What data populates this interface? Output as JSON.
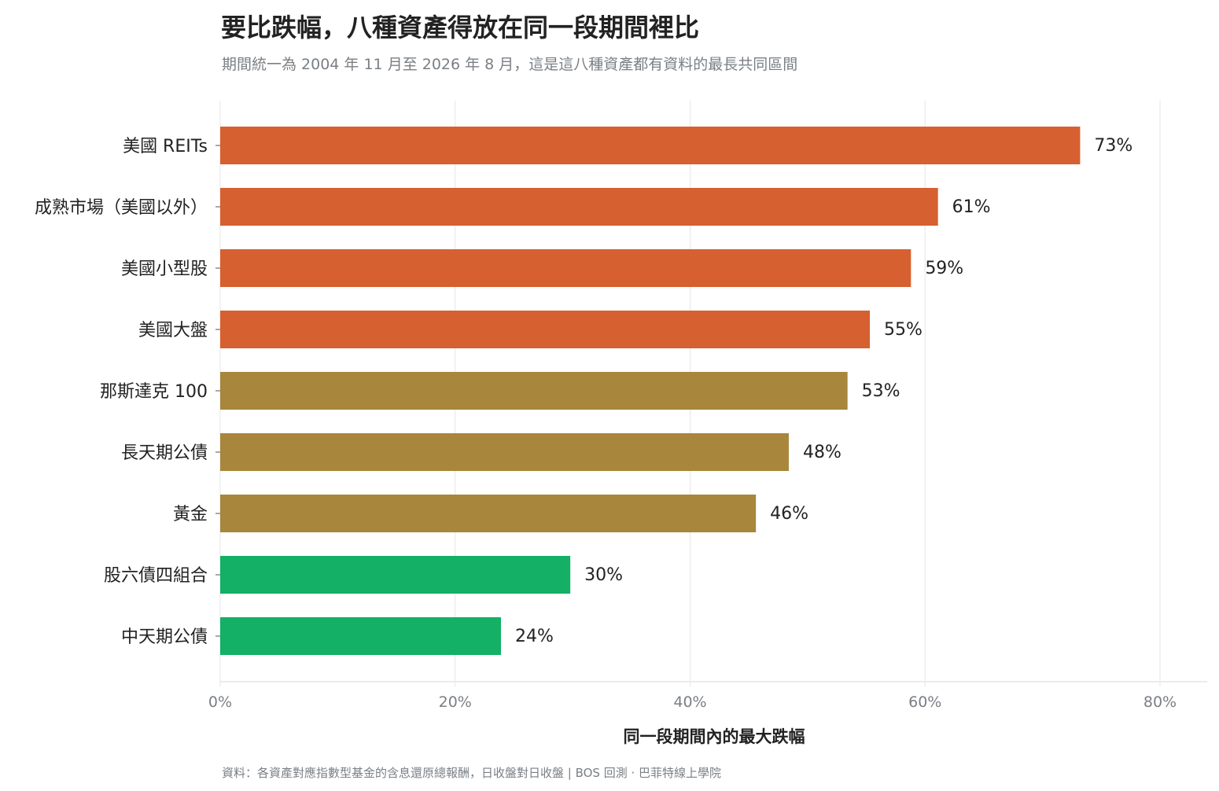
{
  "title": "要比跌幅，八種資產得放在同一段期間裡比",
  "subtitle": "期間統一為 2004 年 11 月至 2026 年 8 月，這是這八種資產都有資料的最長共同區間",
  "source": "資料：各資產對應指數型基金的含息還原總報酬，日收盤對日收盤 | BOS 回測 ·  巴菲特線上學院",
  "colors": {
    "equity_high": "#d66030",
    "mid": "#a8863b",
    "defensive": "#14b066",
    "grid": "#e6e6e6",
    "label_text": "#222222",
    "tick_text": "#7a7f85"
  },
  "chart_data": {
    "type": "bar",
    "orientation": "horizontal",
    "xlabel": "同一段期間內的最大跌幅",
    "ylabel": "",
    "xlim": [
      0,
      80
    ],
    "xticks": [
      "0%",
      "20%",
      "40%",
      "60%",
      "80%"
    ],
    "grid": "vertical",
    "categories": [
      "美國 REITs",
      "成熟市場（美國以外）",
      "美國小型股",
      "美國大盤",
      "那斯達克 100",
      "長天期公債",
      "黃金",
      "股六債四組合",
      "中天期公債"
    ],
    "values": [
      73.2,
      61.1,
      58.8,
      55.3,
      53.4,
      48.4,
      45.6,
      29.8,
      23.9
    ],
    "value_labels": [
      "73%",
      "61%",
      "59%",
      "55%",
      "53%",
      "48%",
      "46%",
      "30%",
      "24%"
    ],
    "bar_colors": [
      "#d66030",
      "#d66030",
      "#d66030",
      "#d66030",
      "#a8863b",
      "#a8863b",
      "#a8863b",
      "#14b066",
      "#14b066"
    ]
  }
}
